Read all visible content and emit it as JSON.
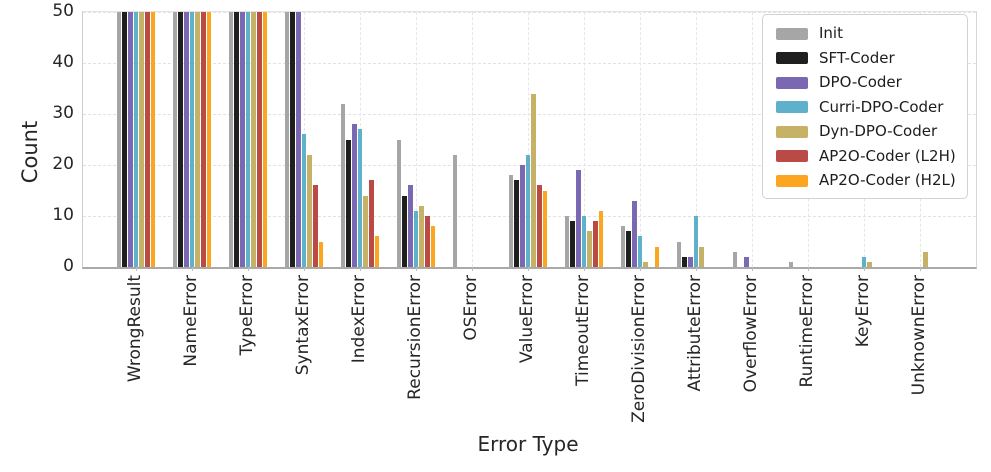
{
  "chart_data": {
    "type": "bar",
    "title": "",
    "xlabel": "Error Type",
    "ylabel": "Count",
    "ylim": [
      0,
      50
    ],
    "yticks": [
      0,
      10,
      20,
      30,
      40,
      50
    ],
    "grid": true,
    "grid_style": "dashed",
    "legend_position": "upper right",
    "categories": [
      "WrongResult",
      "NameError",
      "TypeError",
      "SyntaxError",
      "IndexError",
      "RecursionError",
      "OSError",
      "ValueError",
      "TimeoutError",
      "ZeroDivisionError",
      "AttributeError",
      "OverflowError",
      "RuntimeError",
      "KeyError",
      "UnknownError"
    ],
    "series": [
      {
        "name": "Init",
        "color": "#a6a6a6",
        "values": [
          50,
          50,
          50,
          50,
          32,
          25,
          22,
          18,
          10,
          8,
          5,
          3,
          1,
          0,
          0
        ]
      },
      {
        "name": "SFT-Coder",
        "color": "#1f1f1f",
        "values": [
          50,
          50,
          50,
          50,
          25,
          14,
          0,
          17,
          9,
          7,
          2,
          0,
          0,
          0,
          0
        ]
      },
      {
        "name": "DPO-Coder",
        "color": "#7a68b2",
        "values": [
          50,
          50,
          50,
          50,
          28,
          16,
          0,
          20,
          19,
          13,
          2,
          2,
          0,
          0,
          0
        ]
      },
      {
        "name": "Curri-DPO-Coder",
        "color": "#5fb0ca",
        "values": [
          50,
          50,
          50,
          26,
          27,
          11,
          0,
          22,
          10,
          6,
          10,
          0,
          0,
          2,
          0
        ]
      },
      {
        "name": "Dyn-DPO-Coder",
        "color": "#c5b266",
        "values": [
          50,
          50,
          50,
          22,
          14,
          12,
          0,
          34,
          7,
          1,
          4,
          0,
          0,
          1,
          3
        ]
      },
      {
        "name": "AP2O-Coder (L2H)",
        "color": "#b94a46",
        "values": [
          50,
          50,
          50,
          16,
          17,
          10,
          0,
          16,
          9,
          0,
          0,
          0,
          0,
          0,
          0
        ]
      },
      {
        "name": "AP2O-Coder (H2L)",
        "color": "#fca51f",
        "values": [
          50,
          50,
          50,
          5,
          6,
          8,
          0,
          15,
          11,
          4,
          0,
          0,
          0,
          0,
          0
        ]
      }
    ]
  }
}
